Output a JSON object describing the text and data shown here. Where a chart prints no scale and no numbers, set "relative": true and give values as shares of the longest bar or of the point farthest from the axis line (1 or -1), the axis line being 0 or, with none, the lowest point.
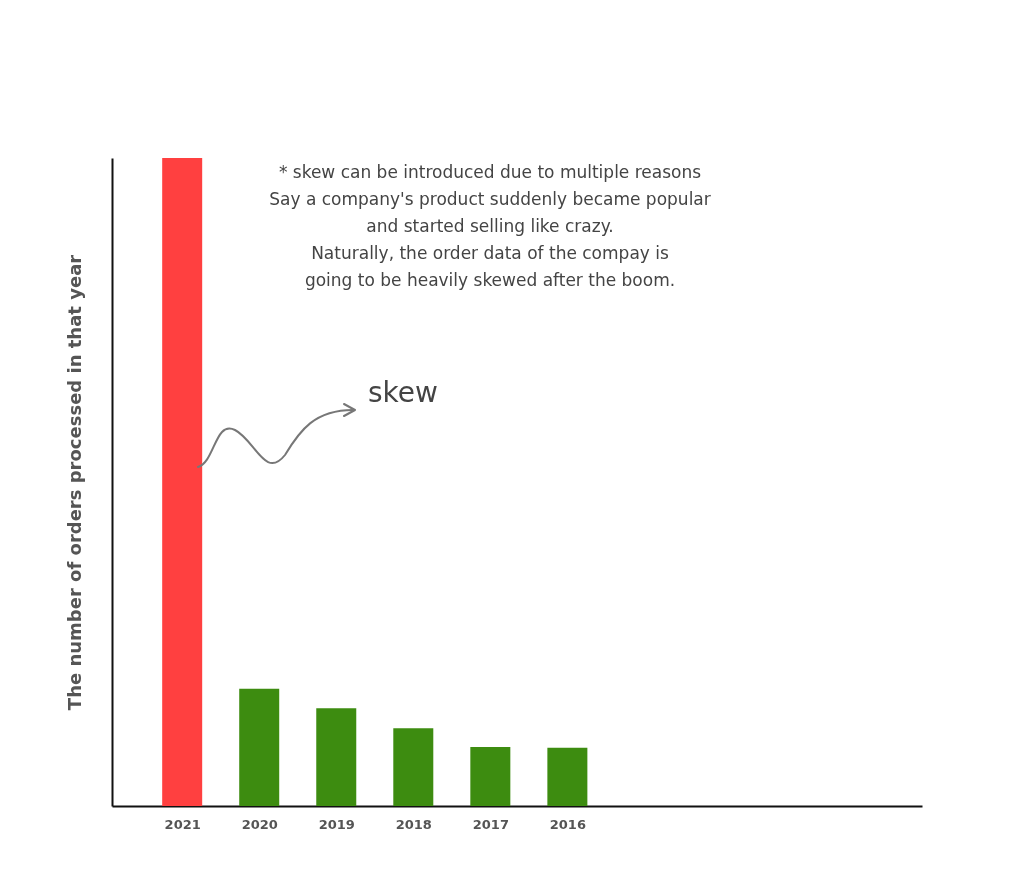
{
  "chart_data": {
    "type": "bar",
    "relative": true,
    "ylabel": "The number of orders processed in that year",
    "categories": [
      "2021",
      "2020",
      "2019",
      "2018",
      "2017",
      "2016"
    ],
    "values": [
      1,
      0.181,
      0.151,
      0.12,
      0.091,
      0.09
    ],
    "colors": [
      "#ff4040",
      "#3d8c10",
      "#3d8c10",
      "#3d8c10",
      "#3d8c10",
      "#3d8c10"
    ],
    "annotations": [
      "* skew can be introduced due to multiple reasons\nSay a company's product suddenly became popular\nand started selling like crazy.\nNaturally, the order data of the compay is\ngoing to be heavily skewed after the boom.",
      "skew"
    ],
    "grid": false
  }
}
